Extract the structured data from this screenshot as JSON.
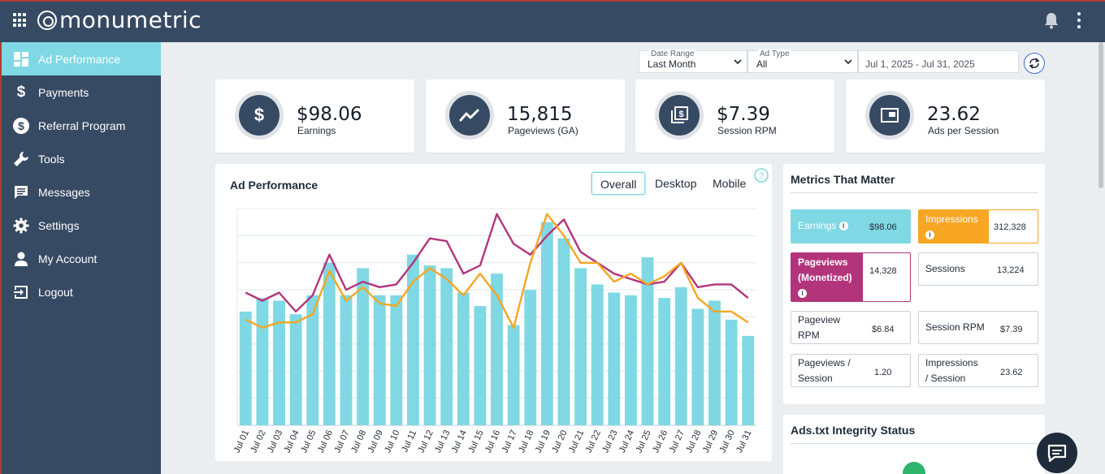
{
  "brand": {
    "name": "monumetric"
  },
  "sidebar": {
    "items": [
      {
        "label": "Ad Performance",
        "icon": "dashboard-icon",
        "active": true
      },
      {
        "label": "Payments",
        "icon": "dollar-icon"
      },
      {
        "label": "Referral Program",
        "icon": "dollar-circle-icon"
      },
      {
        "label": "Tools",
        "icon": "wrench-icon"
      },
      {
        "label": "Messages",
        "icon": "message-icon"
      },
      {
        "label": "Settings",
        "icon": "gear-icon"
      },
      {
        "label": "My Account",
        "icon": "person-icon"
      },
      {
        "label": "Logout",
        "icon": "logout-icon"
      }
    ]
  },
  "filters": {
    "date_range": {
      "label": "Date Range",
      "value": "Last Month"
    },
    "ad_type": {
      "label": "Ad Type",
      "value": "All"
    },
    "dates": "Jul 1, 2025 - Jul 31, 2025"
  },
  "kpis": [
    {
      "value": "$98.06",
      "label": "Earnings",
      "icon": "dollar-icon"
    },
    {
      "value": "15,815",
      "label": "Pageviews (GA)",
      "icon": "trend-line-icon"
    },
    {
      "value": "$7.39",
      "label": "Session RPM",
      "icon": "pages-dollar-icon"
    },
    {
      "value": "23.62",
      "label": "Ads per Session",
      "icon": "picture-in-picture-icon"
    }
  ],
  "ad_performance": {
    "title": "Ad Performance",
    "tabs": [
      "Overall",
      "Desktop",
      "Mobile"
    ],
    "active_tab": "Overall"
  },
  "metrics": {
    "title": "Metrics That Matter",
    "earnings": {
      "label": "Earnings",
      "value": "$98.06"
    },
    "impressions": {
      "label": "Impressions",
      "value": "312,328"
    },
    "pageviews_monetized": {
      "label_line1": "Pageviews",
      "label_line2": "(Monetized)",
      "value": "14,328"
    },
    "sessions": {
      "label": "Sessions",
      "value": "13,224"
    },
    "pageview_rpm": {
      "label_line1": "Pageview",
      "label_line2": "RPM",
      "value": "$6.84"
    },
    "session_rpm": {
      "label": "Session RPM",
      "value": "$7.39"
    },
    "pageviews_per_session": {
      "label_line1": "Pageviews /",
      "label_line2": "Session",
      "value": "1.20"
    },
    "impressions_per_session": {
      "label_line1": "Impressions",
      "label_line2": "/ Session",
      "value": "23.62"
    }
  },
  "ads_txt": {
    "title": "Ads.txt Integrity Status"
  },
  "colors": {
    "teal": "#7fd8e3",
    "orange": "#f6a623",
    "purple": "#b2357b",
    "navy": "#374a63"
  },
  "chart_data": {
    "type": "bar",
    "categories": [
      "Jul 01",
      "Jul 02",
      "Jul 03",
      "Jul 04",
      "Jul 05",
      "Jul 06",
      "Jul 07",
      "Jul 08",
      "Jul 09",
      "Jul 10",
      "Jul 11",
      "Jul 12",
      "Jul 13",
      "Jul 14",
      "Jul 15",
      "Jul 16",
      "Jul 17",
      "Jul 18",
      "Jul 19",
      "Jul 20",
      "Jul 21",
      "Jul 22",
      "Jul 23",
      "Jul 24",
      "Jul 25",
      "Jul 26",
      "Jul 27",
      "Jul 28",
      "Jul 29",
      "Jul 30",
      "Jul 31"
    ],
    "ylim": [
      0,
      8
    ],
    "grid": true,
    "y_ticks_shown": false,
    "series": [
      {
        "type": "bar",
        "color": "#7fd8e3",
        "values": [
          4.2,
          4.7,
          4.6,
          4.1,
          4.8,
          6.0,
          4.8,
          5.8,
          4.8,
          4.8,
          6.3,
          5.9,
          5.8,
          4.9,
          4.4,
          5.6,
          3.7,
          5.0,
          7.5,
          6.9,
          5.8,
          5.2,
          4.9,
          4.8,
          6.2,
          4.7,
          5.1,
          4.3,
          4.6,
          3.9,
          3.3
        ]
      },
      {
        "type": "line",
        "color": "#b2357b",
        "values": [
          4.9,
          4.6,
          4.9,
          4.2,
          4.8,
          6.3,
          5.0,
          5.3,
          5.1,
          5.2,
          6.0,
          6.9,
          6.8,
          5.6,
          5.9,
          7.8,
          6.7,
          6.3,
          7.0,
          7.6,
          6.4,
          6.0,
          5.6,
          5.4,
          5.2,
          5.3,
          6.0,
          5.1,
          5.2,
          5.2,
          4.7
        ]
      },
      {
        "type": "line",
        "color": "#f6a623",
        "values": [
          3.9,
          3.6,
          3.8,
          3.8,
          4.1,
          5.7,
          4.6,
          5.1,
          4.5,
          4.4,
          5.3,
          5.8,
          5.4,
          4.8,
          5.6,
          4.8,
          3.6,
          6.0,
          7.8,
          7.0,
          6.0,
          6.0,
          5.3,
          5.6,
          5.2,
          5.5,
          6.0,
          4.7,
          4.2,
          4.2,
          3.8
        ]
      }
    ]
  }
}
